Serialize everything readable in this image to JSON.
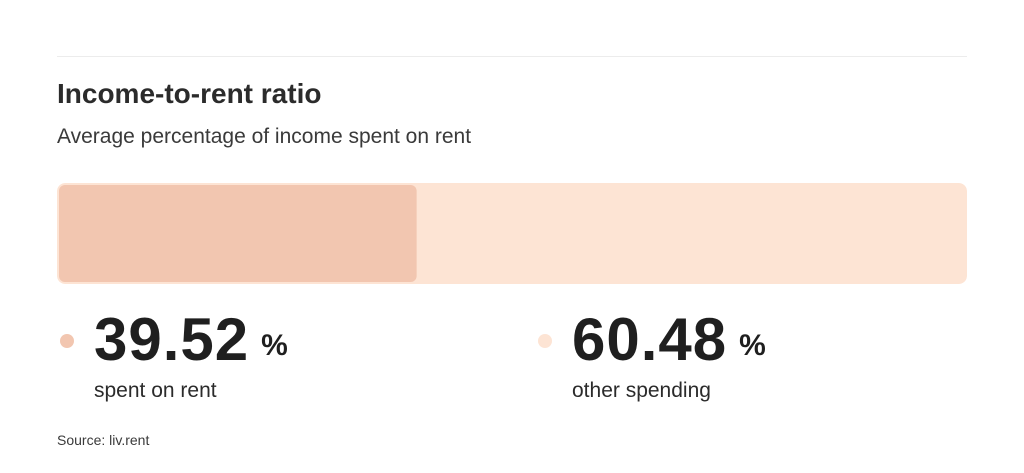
{
  "header": {
    "title": "Income-to-rent ratio",
    "subtitle": "Average percentage of income spent on rent"
  },
  "chart_data": {
    "type": "bar",
    "orientation": "horizontal-stacked",
    "categories": [
      "spent on rent",
      "other spending"
    ],
    "values": [
      39.52,
      60.48
    ],
    "unit": "%",
    "title": "Income-to-rent ratio",
    "subtitle": "Average percentage of income spent on rent",
    "xlim": [
      0,
      100
    ],
    "grid": false,
    "legend": "bottom",
    "colors": [
      "#f2c6b0",
      "#fde4d4"
    ]
  },
  "stats": [
    {
      "value": "39.52",
      "unit": "%",
      "label": "spent on rent",
      "color": "#f2c6b0"
    },
    {
      "value": "60.48",
      "unit": "%",
      "label": "other spending",
      "color": "#fde4d4"
    }
  ],
  "footer": {
    "source": "Source: liv.rent"
  }
}
